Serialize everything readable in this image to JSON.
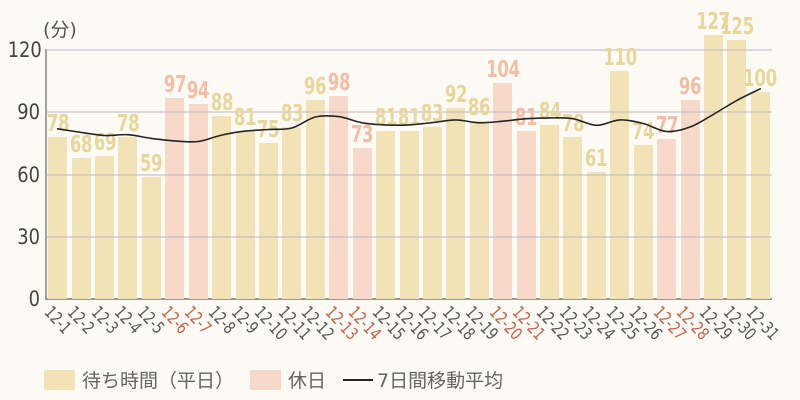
{
  "chart_data": {
    "type": "bar",
    "title": "",
    "unit_label": "(分)",
    "xlabel": "",
    "ylabel": "分",
    "ylim": [
      0,
      120
    ],
    "yticks": [
      0,
      30,
      60,
      90,
      120
    ],
    "grid": "horizontal",
    "legend_position": "bottom-left",
    "categories": [
      "12-1",
      "12-2",
      "12-3",
      "12-4",
      "12-5",
      "12-6",
      "12-7",
      "12-8",
      "12-9",
      "12-10",
      "12-11",
      "12-12",
      "12-13",
      "12-14",
      "12-15",
      "12-16",
      "12-17",
      "12-18",
      "12-19",
      "12-20",
      "12-21",
      "12-22",
      "12-23",
      "12-24",
      "12-25",
      "12-26",
      "12-27",
      "12-28",
      "12-29",
      "12-30",
      "12-31"
    ],
    "values": [
      78,
      68,
      69,
      78,
      59,
      97,
      94,
      88,
      81,
      75,
      83,
      96,
      98,
      73,
      81,
      81,
      83,
      92,
      86,
      104,
      81,
      84,
      78,
      61,
      110,
      74,
      77,
      96,
      127,
      125,
      100
    ],
    "holiday_dates": [
      "12-6",
      "12-7",
      "12-13",
      "12-14",
      "12-20",
      "12-21",
      "12-27",
      "12-28"
    ],
    "moving_average": {
      "name": "7日間移動平均",
      "values": [
        82,
        80.3,
        78.8,
        79.2,
        77.4,
        76.2,
        75.9,
        79,
        80.9,
        81.7,
        82.4,
        87.7,
        87.9,
        84.9,
        83.9,
        83.9,
        85,
        86.3,
        84.9,
        85.7,
        86.9,
        87.3,
        86.9,
        83.7,
        86.3,
        84.6,
        80.7,
        82.9,
        89,
        95.7,
        101.3
      ]
    },
    "legend": [
      {
        "label": "待ち時間（平日）",
        "swatch": "bar",
        "color": "#f1e3b5"
      },
      {
        "label": "休日",
        "swatch": "bar",
        "color": "#f7d9c9"
      },
      {
        "label": "7日間移動平均",
        "swatch": "line",
        "color": "#262522"
      }
    ],
    "colors": {
      "weekday_bar": "#f1e3b5",
      "holiday_bar": "#f7d9c9",
      "weekday_value_label": "#e9d69b",
      "holiday_value_label": "#f3bda6",
      "weekday_tick": "#585650",
      "holiday_tick": "#c4614a",
      "line": "#262522",
      "grid": "rgba(187,184,195,0.5)",
      "axis": "#a5a29a",
      "y_tick_text": "#45433e",
      "legend_text": "#67645c",
      "background": "#fbfaf5"
    }
  }
}
